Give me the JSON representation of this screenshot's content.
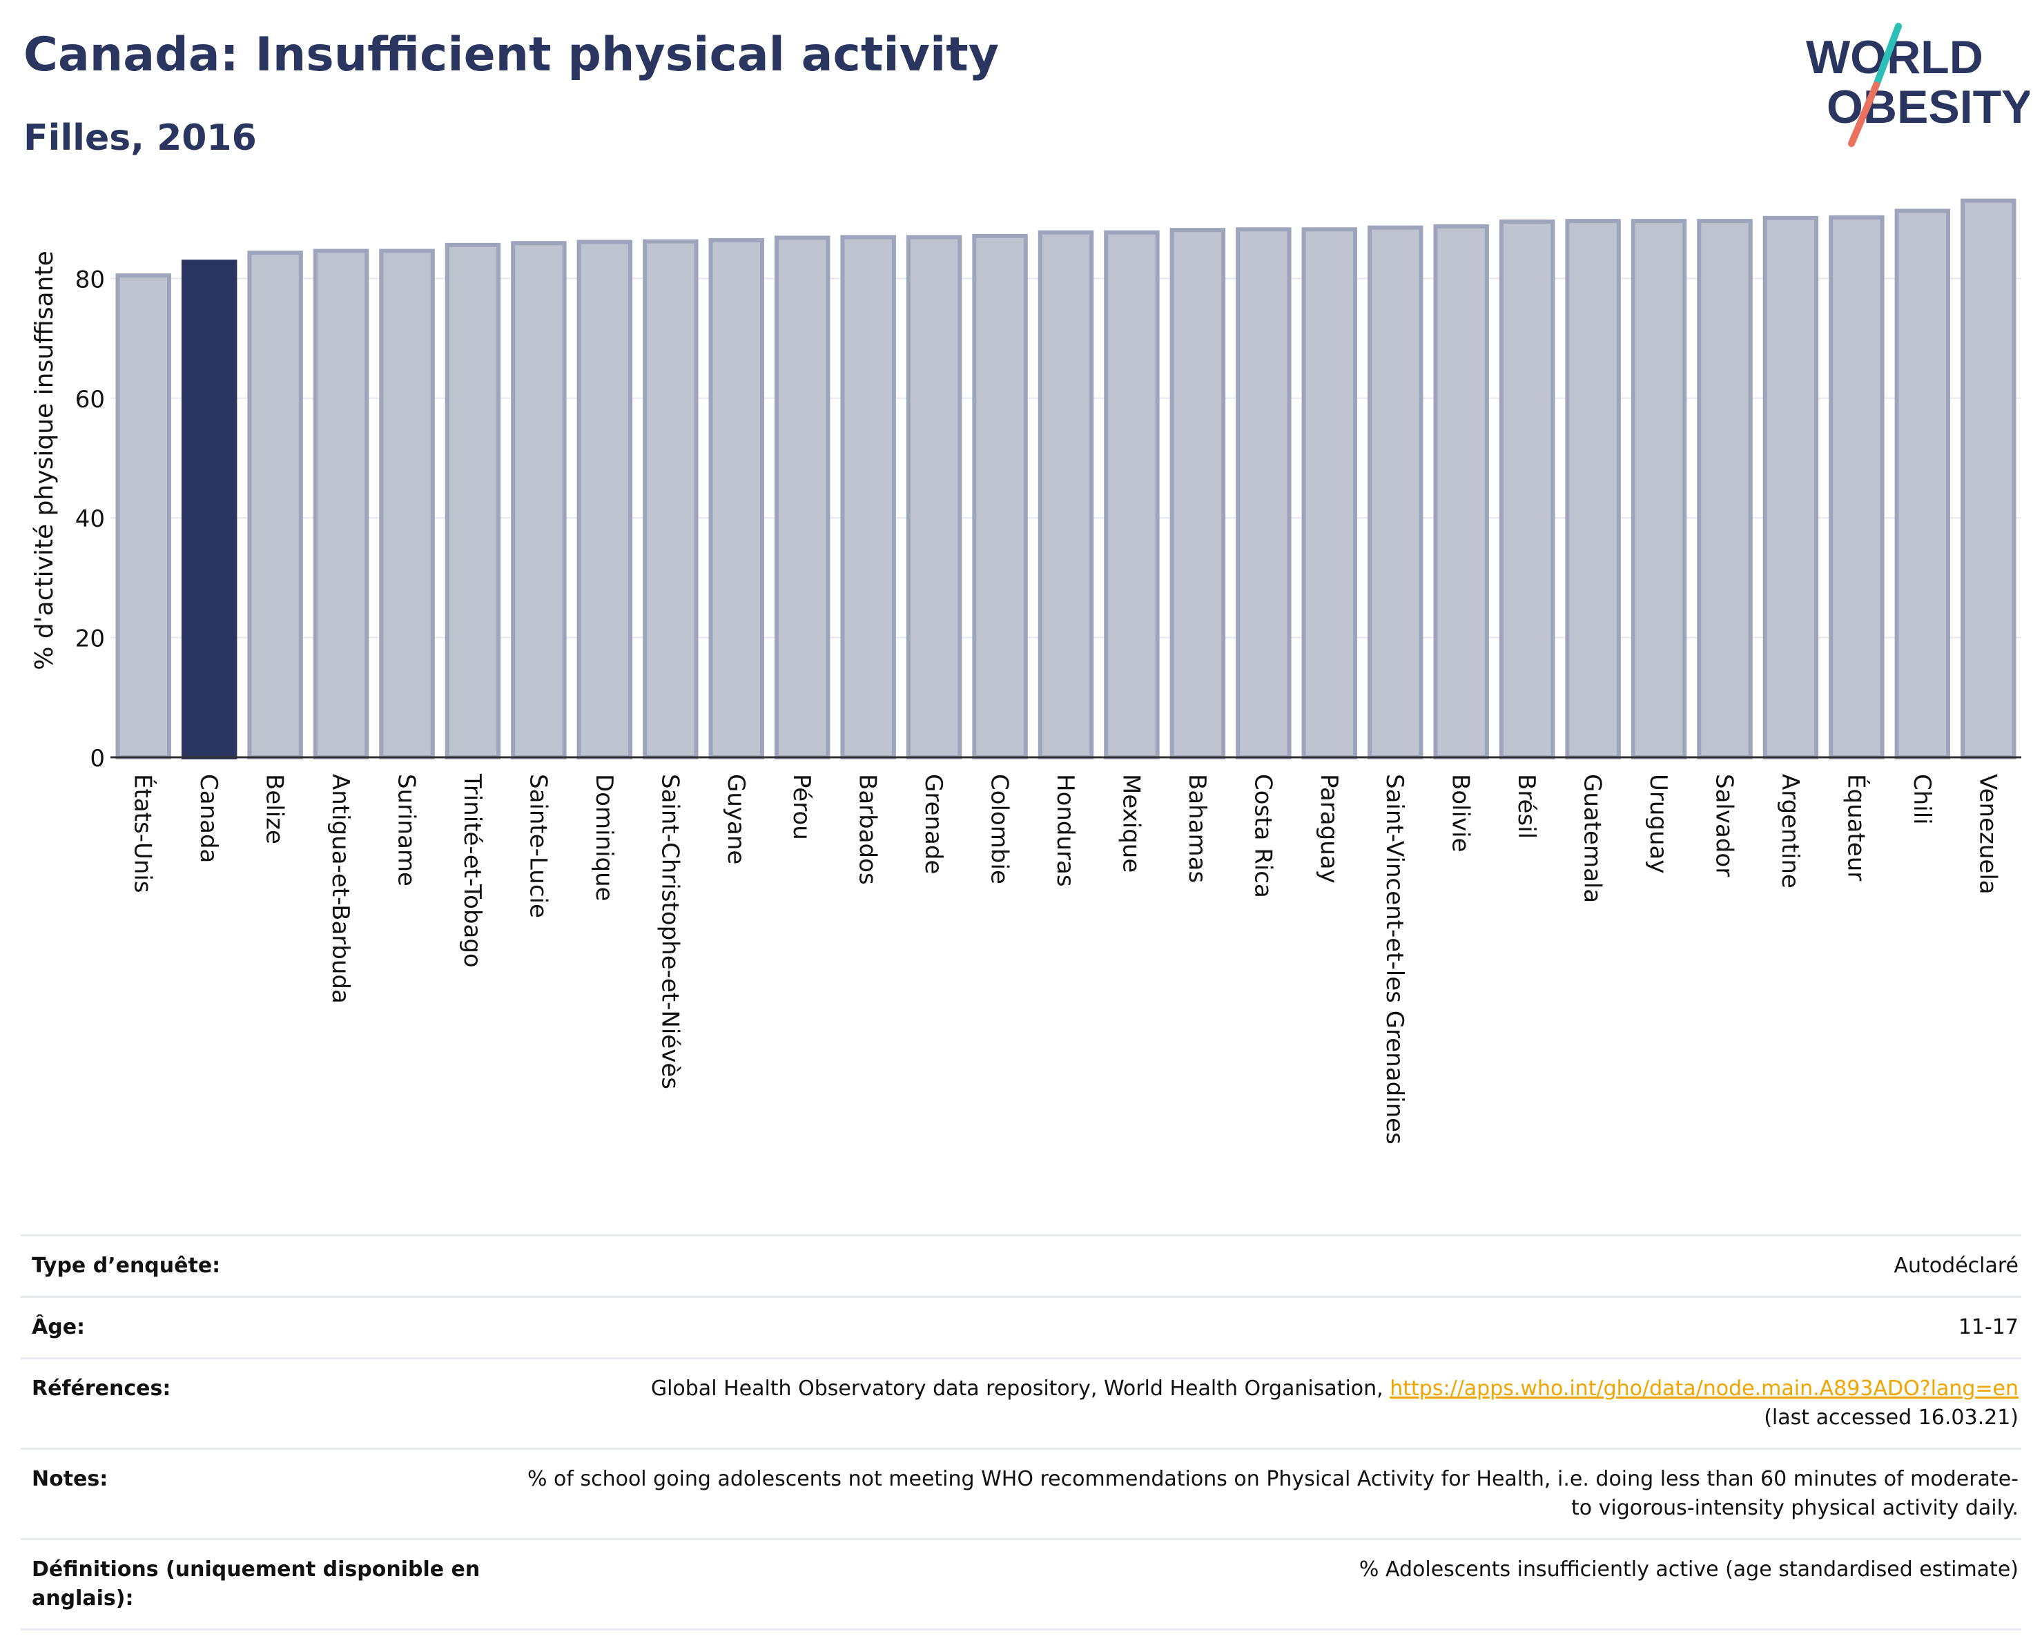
{
  "header": {
    "title": "Canada: Insufficient physical activity",
    "subtitle": "Filles, 2016"
  },
  "logo": {
    "line1": "WORLD",
    "line2": "OBESITY",
    "colors": {
      "text": "#2a3560",
      "slash_top": "#2bbfb6",
      "slash_bottom": "#e8715f"
    }
  },
  "chart_data": {
    "type": "bar",
    "title": "Canada: Insufficient physical activity",
    "subtitle": "Filles, 2016",
    "xlabel": "",
    "ylabel": "% d'activité physique insuffisante",
    "ylim": [
      0,
      94
    ],
    "yticks": [
      0,
      20,
      40,
      60,
      80
    ],
    "grid": true,
    "highlight": "Canada",
    "colors": {
      "bar": "#bfc3d0",
      "bar_border": "#9ea4bc",
      "highlight": "#2a3560"
    },
    "categories": [
      "États-Unis",
      "Canada",
      "Belize",
      "Antigua-et-Barbuda",
      "Suriname",
      "Trinité-et-Tobago",
      "Sainte-Lucie",
      "Dominique",
      "Saint-Christophe-et-Niévès",
      "Guyane",
      "Pérou",
      "Barbados",
      "Grenade",
      "Colombie",
      "Honduras",
      "Mexique",
      "Bahamas",
      "Costa Rica",
      "Paraguay",
      "Saint-Vincent-et-les Grenadines",
      "Bolivie",
      "Brésil",
      "Guatemala",
      "Uruguay",
      "Salvador",
      "Argentine",
      "Équateur",
      "Chili",
      "Venezuela"
    ],
    "values": [
      80.5,
      82.8,
      84.3,
      84.6,
      84.6,
      85.6,
      85.9,
      86.1,
      86.2,
      86.4,
      86.8,
      86.9,
      86.9,
      87.1,
      87.7,
      87.7,
      88.1,
      88.2,
      88.2,
      88.5,
      88.7,
      89.5,
      89.6,
      89.6,
      89.6,
      90.1,
      90.2,
      91.3,
      93.0
    ]
  },
  "info": [
    {
      "label": "Type d’enquête:",
      "value": "Autodéclaré"
    },
    {
      "label": "Âge:",
      "value": "11-17"
    },
    {
      "label": "Références:",
      "value": "Global Health Observatory data repository, World Health Organisation,",
      "link": "https://apps.who.int/gho/data/node.main.A893ADO?lang=en",
      "extra": "(last accessed 16.03.21)"
    },
    {
      "label": "Notes:",
      "value": "% of school going adolescents not meeting WHO recommendations on Physical Activity for Health, i.e. doing less than 60 minutes of moderate- to vigorous-intensity physical activity daily."
    },
    {
      "label": "Définitions (uniquement disponible en anglais):",
      "value": "% Adolescents insufficiently active (age standardised estimate)"
    }
  ]
}
